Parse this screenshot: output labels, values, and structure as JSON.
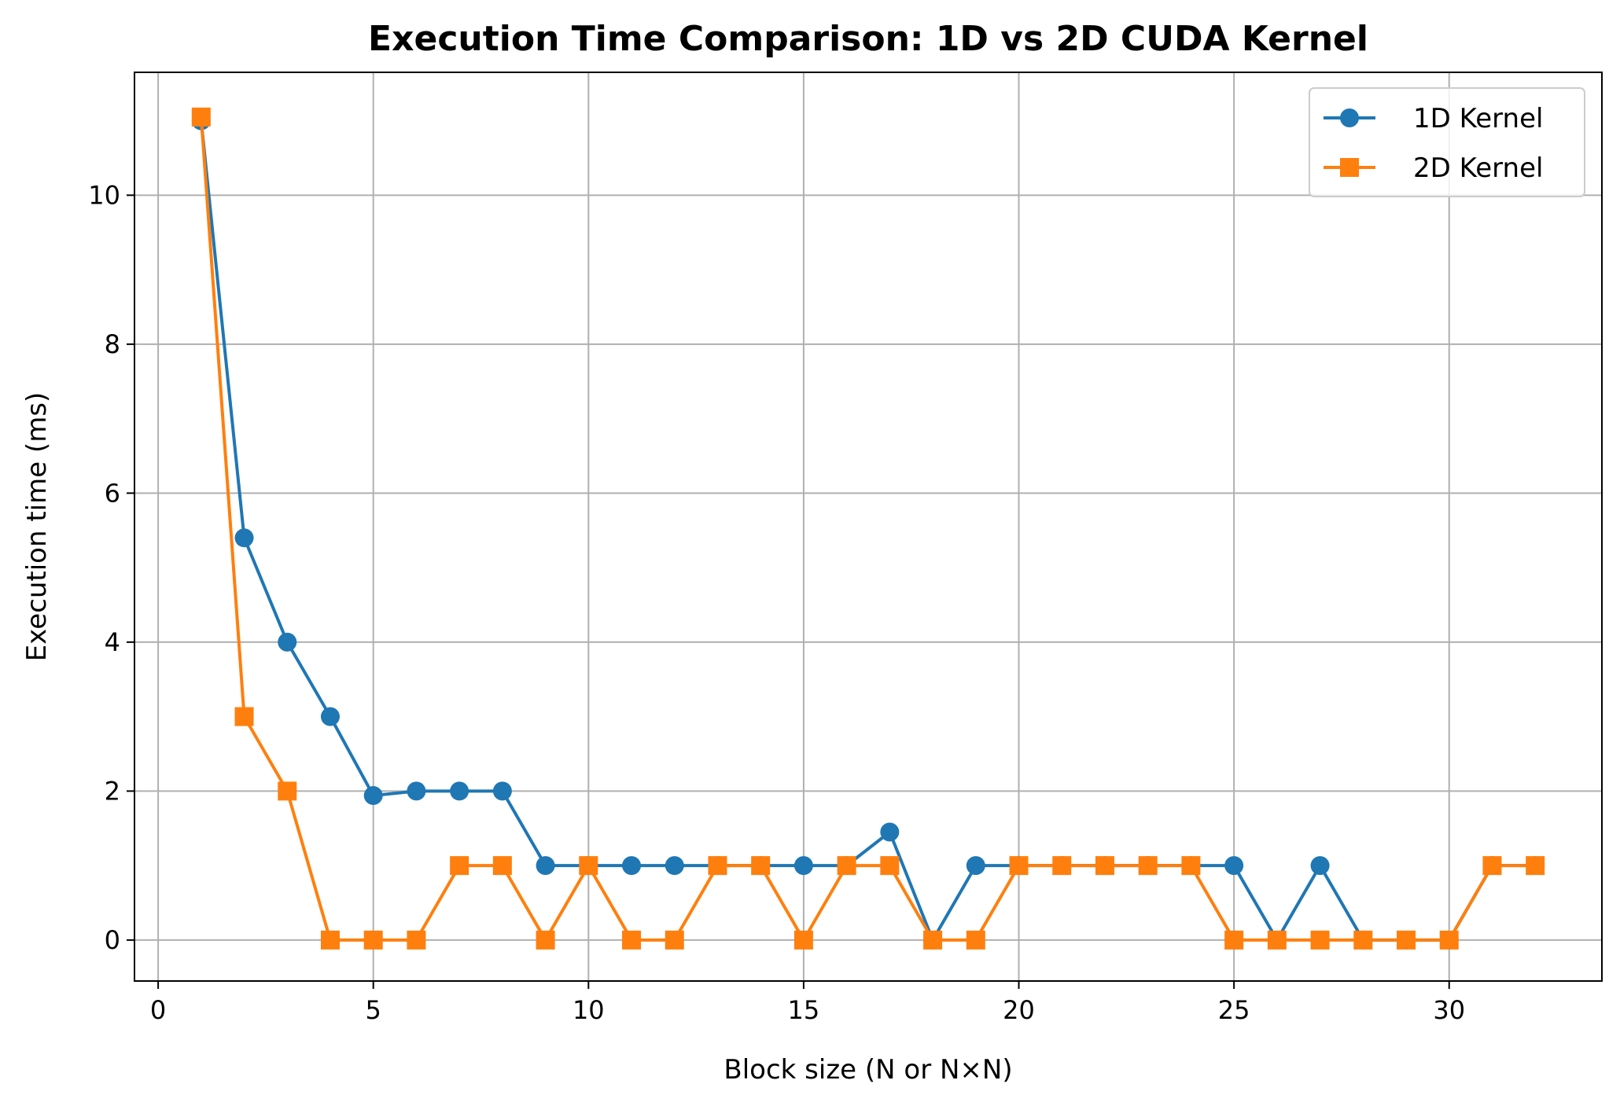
{
  "chart_data": {
    "type": "line",
    "title": "Execution Time Comparison: 1D vs 2D CUDA Kernel",
    "xlabel": "Block size (N or N×N)",
    "ylabel": "Execution time (ms)",
    "xlim": [
      -0.55,
      33.55
    ],
    "ylim": [
      -0.55,
      11.65
    ],
    "xticks": [
      0,
      5,
      10,
      15,
      20,
      25,
      30
    ],
    "yticks": [
      0,
      2,
      4,
      6,
      8,
      10
    ],
    "grid": true,
    "legend_position": "top-right",
    "x": [
      1,
      2,
      3,
      4,
      5,
      6,
      7,
      8,
      9,
      10,
      11,
      12,
      13,
      14,
      15,
      16,
      17,
      18,
      19,
      20,
      21,
      22,
      23,
      24,
      25,
      26,
      27,
      28,
      29,
      30,
      31,
      32
    ],
    "series": [
      {
        "name": "1D Kernel",
        "color": "#1f77b4",
        "marker": "circle",
        "values": [
          11.0,
          5.4,
          4.0,
          3.0,
          1.94,
          2.0,
          2.0,
          2.0,
          1.0,
          1.0,
          1.0,
          1.0,
          1.0,
          1.0,
          1.0,
          1.0,
          1.45,
          0.0,
          1.0,
          1.0,
          1.0,
          1.0,
          1.0,
          1.0,
          1.0,
          0.0,
          1.0,
          0.0,
          0.0,
          0.0,
          1.0,
          1.0
        ]
      },
      {
        "name": "2D Kernel",
        "color": "#ff7f0e",
        "marker": "square",
        "values": [
          11.05,
          3.0,
          2.0,
          0.0,
          0.0,
          0.0,
          1.0,
          1.0,
          0.0,
          1.0,
          0.0,
          0.0,
          1.0,
          1.0,
          0.0,
          1.0,
          1.0,
          0.0,
          0.0,
          1.0,
          1.0,
          1.0,
          1.0,
          1.0,
          0.0,
          0.0,
          0.0,
          0.0,
          0.0,
          0.0,
          1.0,
          1.0
        ]
      }
    ]
  }
}
